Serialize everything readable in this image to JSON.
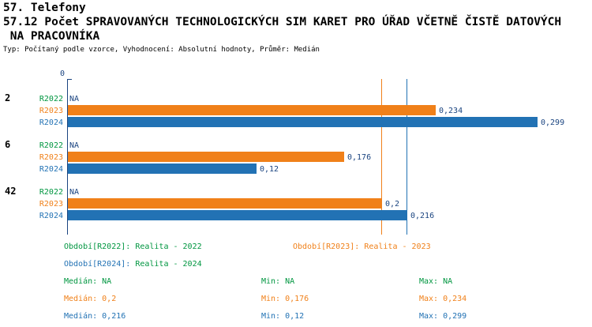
{
  "title": {
    "line1": "57. Telefony",
    "line2": "57.12 Počet SPRAVOVANÝCH TECHNOLOGICKÝCH SIM KARET PRO ÚŘAD VČETNĚ ČISTĚ DATOVÝCH",
    "line3": " NA PRACOVNÍKA",
    "subtitle": "Typ: Počítaný podle vzorce, Vyhodnocení: Absolutní hodnoty, Průměr: Medián"
  },
  "colors": {
    "green": "#009640",
    "orange": "#F08019",
    "blue": "#2272B4",
    "axis": "#1A4480",
    "value_text": "#1A4480"
  },
  "chart_data": {
    "type": "bar",
    "orientation": "horizontal",
    "x_axis": {
      "zero_label": "0",
      "min": 0,
      "max": 0.32
    },
    "series_colors": {
      "R2022": "#009640",
      "R2023": "#F08019",
      "R2024": "#2272B4"
    },
    "groups": [
      {
        "label": "2",
        "rows": [
          {
            "series": "R2022",
            "value": null,
            "display": "NA"
          },
          {
            "series": "R2023",
            "value": 0.234,
            "display": "0,234"
          },
          {
            "series": "R2024",
            "value": 0.299,
            "display": "0,299"
          }
        ]
      },
      {
        "label": "6",
        "rows": [
          {
            "series": "R2022",
            "value": null,
            "display": "NA"
          },
          {
            "series": "R2023",
            "value": 0.176,
            "display": "0,176"
          },
          {
            "series": "R2024",
            "value": 0.12,
            "display": "0,12"
          }
        ]
      },
      {
        "label": "42",
        "rows": [
          {
            "series": "R2022",
            "value": null,
            "display": "NA"
          },
          {
            "series": "R2023",
            "value": 0.2,
            "display": "0,2"
          },
          {
            "series": "R2024",
            "value": 0.216,
            "display": "0,216"
          }
        ]
      }
    ],
    "reference_lines": [
      {
        "series": "R2023",
        "value": 0.2,
        "meaning": "median R2023"
      },
      {
        "series": "R2024",
        "value": 0.216,
        "meaning": "median R2024"
      }
    ]
  },
  "legend": {
    "entries": [
      {
        "label": "Období[R2022]:",
        "text": " Realita - 2022",
        "label_color": "#009640",
        "text_color": "#009640"
      },
      {
        "label": "Období[R2023]:",
        "text": " Realita - 2023",
        "label_color": "#F08019",
        "text_color": "#F08019"
      },
      {
        "label": "Období[R2024]:",
        "text": " Realita - 2024",
        "label_color": "#2272B4",
        "text_color": "#009640"
      }
    ]
  },
  "stats": {
    "rows": [
      {
        "series": "R2022",
        "color": "#009640",
        "median": "Medián: NA",
        "min": "Min: NA",
        "max": "Max: NA"
      },
      {
        "series": "R2023",
        "color": "#F08019",
        "median": "Medián: 0,2",
        "min": "Min: 0,176",
        "max": "Max: 0,234"
      },
      {
        "series": "R2024",
        "color": "#2272B4",
        "median": "Medián: 0,216",
        "min": "Min: 0,12",
        "max": "Max: 0,299"
      }
    ]
  }
}
